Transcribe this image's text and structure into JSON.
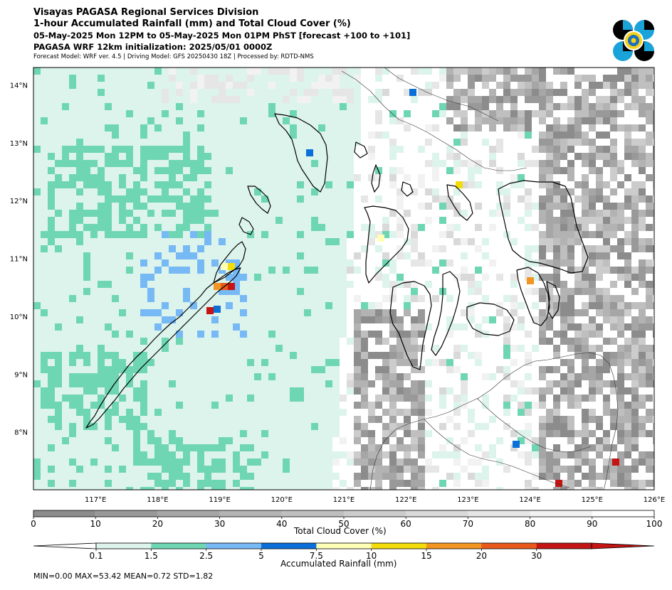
{
  "header": {
    "title_line1": "Visayas PAGASA Regional Services Division",
    "title_line2": "1-hour Accumulated Rainfall (mm) and Total Cloud Cover (%)",
    "valid_time": "05-May-2025 Mon 12PM to 05-May-2025 Mon 01PM PhST [forecast +100 to +101]",
    "init_line": "PAGASA WRF 12km initialization: 2025/05/01 0000Z",
    "model_line": "Forecast Model: WRF ver. 4.5 | Driving Model: GFS 20250430 18Z | Processed by: RDTD-NMS"
  },
  "logo": {
    "icon": "pagasa-logo-icon"
  },
  "map": {
    "extent": {
      "lon": [
        116.0,
        126.0
      ],
      "lat": [
        7.0,
        14.3
      ]
    },
    "lon_ticks": [
      "117°E",
      "118°E",
      "119°E",
      "120°E",
      "121°E",
      "122°E",
      "123°E",
      "124°E",
      "125°E",
      "126°E"
    ],
    "lat_ticks": [
      "14°N",
      "13°N",
      "12°N",
      "11°N",
      "10°N",
      "9°N",
      "8°N"
    ],
    "colors": {
      "land_outline": "#000000",
      "sea_clear": "#ffffff"
    }
  },
  "cloud_colorbar": {
    "title": "Total Cloud Cover (%)",
    "ticks": [
      "0",
      "10",
      "20",
      "30",
      "40",
      "50",
      "60",
      "70",
      "80",
      "90",
      "100"
    ],
    "colors": [
      "#8c8c8c",
      "#999999",
      "#a6a6a6",
      "#b3b3b3",
      "#bfbfbf",
      "#cccccc",
      "#d9d9d9",
      "#e6e6e6",
      "#f2f2f2",
      "#ffffff"
    ]
  },
  "rain_colorbar": {
    "title": "Accumulated Rainfall (mm)",
    "ticks": [
      "0.1",
      "1.5",
      "2.5",
      "5",
      "7.5",
      "10",
      "15",
      "20",
      "30"
    ],
    "colors": [
      "#dcf4ec",
      "#6fd6b4",
      "#77b9f5",
      "#0a6fd9",
      "#ffffb8",
      "#f2dd0a",
      "#f29522",
      "#e8591a",
      "#c41414"
    ],
    "under_color": "#ffffff",
    "over_color": "#c41414"
  },
  "stats": "MIN=0.00   MAX=53.42   MEAN=0.72   STD=1.82"
}
